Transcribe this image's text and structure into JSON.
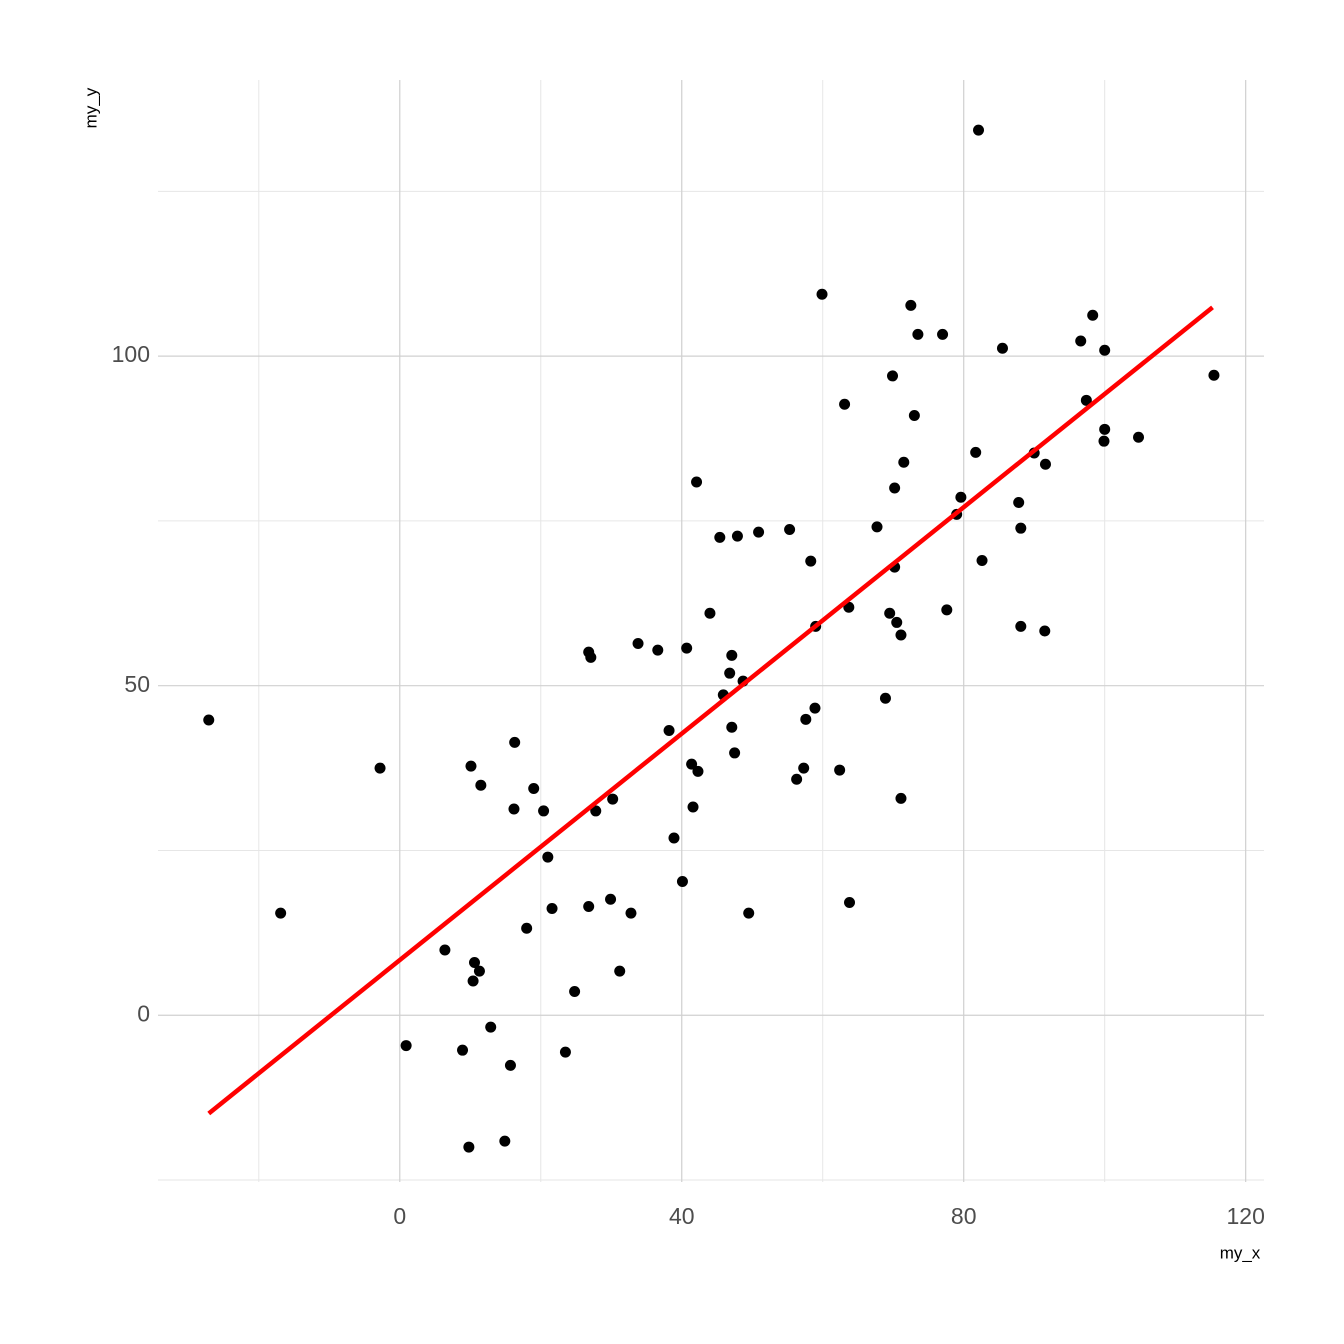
{
  "chart_data": {
    "type": "scatter",
    "x_label": "my_x",
    "y_label": "my_y",
    "xlim": [
      -34.3,
      122.6
    ],
    "ylim": [
      -25.3,
      141.9
    ],
    "xticks": [
      0,
      40,
      80,
      120
    ],
    "yticks": [
      0,
      50,
      100
    ],
    "xminor": [
      -20,
      20,
      60,
      100
    ],
    "yminor": [
      -25,
      25,
      75,
      125
    ],
    "grid": true,
    "color": "#000000",
    "x": [
      -27.1,
      -16.9,
      -2.8,
      0.9,
      6.4,
      10.1,
      11.5,
      10.6,
      11.3,
      10.4,
      12.9,
      8.9,
      9.8,
      14.9,
      15.7,
      16.3,
      16.2,
      19.0,
      20.4,
      21.0,
      21.6,
      18.0,
      23.5,
      24.8,
      26.8,
      27.1,
      27.8,
      30.2,
      26.8,
      29.9,
      32.8,
      31.2,
      33.8,
      36.6,
      38.2,
      38.9,
      40.1,
      40.7,
      42.1,
      44.0,
      41.4,
      42.3,
      41.6,
      45.4,
      47.9,
      50.9,
      55.3,
      47.1,
      46.8,
      45.9,
      48.7,
      47.1,
      47.5,
      49.5,
      58.3,
      59.0,
      59.9,
      57.6,
      58.9,
      57.3,
      56.3,
      62.4,
      63.1,
      63.7,
      63.8,
      67.7,
      69.9,
      72.5,
      73.5,
      77.0,
      73.0,
      71.5,
      70.2,
      70.2,
      69.5,
      70.5,
      71.1,
      68.9,
      71.1,
      77.6,
      82.1,
      81.7,
      79.6,
      79.0,
      82.6,
      85.5,
      87.8,
      88.1,
      88.1,
      91.5,
      90.0,
      91.6,
      96.6,
      98.3,
      100.0,
      97.4,
      100.0,
      99.9,
      104.8,
      115.5
    ],
    "values": [
      44.8,
      15.5,
      37.5,
      -4.6,
      9.9,
      37.8,
      34.9,
      8.0,
      6.7,
      5.2,
      -1.8,
      -5.3,
      -20.0,
      -19.1,
      -7.6,
      41.4,
      31.3,
      34.4,
      31.0,
      24.0,
      16.2,
      13.2,
      -5.6,
      3.6,
      55.1,
      54.3,
      31.0,
      32.8,
      16.5,
      17.6,
      15.5,
      6.7,
      56.4,
      55.4,
      43.2,
      26.9,
      20.3,
      55.7,
      80.9,
      61.0,
      38.1,
      37.0,
      31.6,
      72.5,
      72.7,
      73.3,
      73.7,
      54.6,
      51.9,
      48.6,
      50.7,
      43.7,
      39.8,
      15.5,
      68.9,
      59.0,
      109.4,
      44.9,
      46.6,
      37.5,
      35.8,
      37.2,
      92.7,
      61.9,
      17.1,
      74.1,
      97.0,
      107.7,
      103.3,
      103.3,
      91.0,
      83.9,
      80.0,
      68.0,
      61.0,
      59.6,
      57.7,
      48.1,
      32.9,
      61.5,
      134.3,
      85.4,
      78.6,
      76.0,
      69.0,
      101.2,
      77.8,
      73.9,
      59.0,
      58.3,
      85.3,
      83.6,
      102.3,
      106.2,
      100.9,
      93.3,
      88.9,
      87.1,
      87.7,
      97.1
    ],
    "trend": {
      "x": [
        -27.1,
        115.3
      ],
      "y": [
        -14.9,
        107.4
      ],
      "color": "#ff0000"
    }
  }
}
